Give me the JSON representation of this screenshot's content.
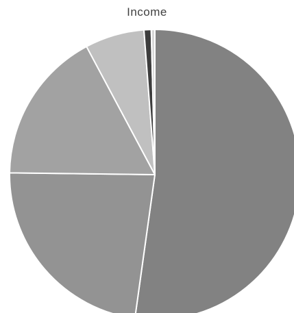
{
  "chart_data": {
    "type": "pie",
    "title": "Income",
    "start_angle_deg": 0,
    "direction": "clockwise",
    "slices": [
      {
        "value": 52.2,
        "color": "#828282"
      },
      {
        "value": 23.0,
        "color": "#939393"
      },
      {
        "value": 17.0,
        "color": "#a2a2a2"
      },
      {
        "value": 6.6,
        "color": "#c0c0c0"
      },
      {
        "value": 0.8,
        "color": "#3d3d3d"
      },
      {
        "value": 0.4,
        "color": "#d7d7d7"
      }
    ],
    "slice_border_color": "#ffffff",
    "legend": "none"
  }
}
